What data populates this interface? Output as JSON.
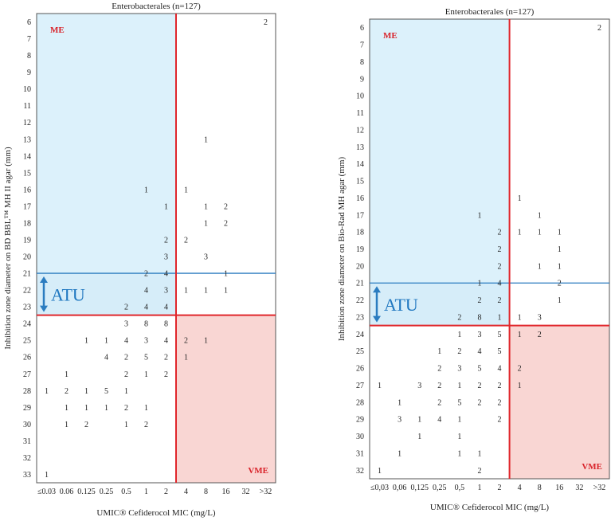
{
  "chart_data": [
    {
      "type": "table",
      "title": "Enterobacterales (n=127)",
      "xlabel": "UMIC® Cefiderocol MIC (mg/L)",
      "ylabel": "Inhibition zone diameter on BD BBL™ MH II agar (mm)",
      "x_categories": [
        "≤0.03",
        "0.06",
        "0.125",
        "0.25",
        "0.5",
        "1",
        "2",
        "4",
        "8",
        "16",
        "32",
        ">32"
      ],
      "y_categories": [
        "6",
        "7",
        "8",
        "9",
        "10",
        "11",
        "12",
        "13",
        "14",
        "15",
        "16",
        "17",
        "18",
        "19",
        "20",
        "21",
        "22",
        "23",
        "24",
        "25",
        "26",
        "27",
        "28",
        "29",
        "30",
        "31",
        "32",
        "33"
      ],
      "zones": {
        "me": "ME",
        "vme": "VME",
        "atu": "ATU"
      },
      "cells": [
        {
          "x": ">32",
          "y": "6",
          "value": 2
        },
        {
          "x": "8",
          "y": "13",
          "value": 1
        },
        {
          "x": "1",
          "y": "16",
          "value": 1
        },
        {
          "x": "4",
          "y": "16",
          "value": 1
        },
        {
          "x": "2",
          "y": "17",
          "value": 1
        },
        {
          "x": "8",
          "y": "17",
          "value": 1
        },
        {
          "x": "16",
          "y": "17",
          "value": 2
        },
        {
          "x": "8",
          "y": "18",
          "value": 1
        },
        {
          "x": "16",
          "y": "18",
          "value": 2
        },
        {
          "x": "2",
          "y": "19",
          "value": 2
        },
        {
          "x": "4",
          "y": "19",
          "value": 2
        },
        {
          "x": "2",
          "y": "20",
          "value": 3
        },
        {
          "x": "8",
          "y": "20",
          "value": 3
        },
        {
          "x": "1",
          "y": "21",
          "value": 2
        },
        {
          "x": "2",
          "y": "21",
          "value": 4
        },
        {
          "x": "16",
          "y": "21",
          "value": 1
        },
        {
          "x": "1",
          "y": "22",
          "value": 4
        },
        {
          "x": "2",
          "y": "22",
          "value": 3
        },
        {
          "x": "4",
          "y": "22",
          "value": 1
        },
        {
          "x": "8",
          "y": "22",
          "value": 1
        },
        {
          "x": "16",
          "y": "22",
          "value": 1
        },
        {
          "x": "0.5",
          "y": "23",
          "value": 2
        },
        {
          "x": "1",
          "y": "23",
          "value": 4
        },
        {
          "x": "2",
          "y": "23",
          "value": 4
        },
        {
          "x": "0.5",
          "y": "24",
          "value": 3
        },
        {
          "x": "1",
          "y": "24",
          "value": 8
        },
        {
          "x": "2",
          "y": "24",
          "value": 8
        },
        {
          "x": "0.125",
          "y": "25",
          "value": 1
        },
        {
          "x": "0.25",
          "y": "25",
          "value": 1
        },
        {
          "x": "0.5",
          "y": "25",
          "value": 4
        },
        {
          "x": "1",
          "y": "25",
          "value": 3
        },
        {
          "x": "2",
          "y": "25",
          "value": 4
        },
        {
          "x": "4",
          "y": "25",
          "value": 2
        },
        {
          "x": "8",
          "y": "25",
          "value": 1
        },
        {
          "x": "0.25",
          "y": "26",
          "value": 4
        },
        {
          "x": "0.5",
          "y": "26",
          "value": 2
        },
        {
          "x": "1",
          "y": "26",
          "value": 5
        },
        {
          "x": "2",
          "y": "26",
          "value": 2
        },
        {
          "x": "4",
          "y": "26",
          "value": 1
        },
        {
          "x": "0.06",
          "y": "27",
          "value": 1
        },
        {
          "x": "0.5",
          "y": "27",
          "value": 2
        },
        {
          "x": "1",
          "y": "27",
          "value": 1
        },
        {
          "x": "2",
          "y": "27",
          "value": 2
        },
        {
          "x": "≤0.03",
          "y": "28",
          "value": 1
        },
        {
          "x": "0.06",
          "y": "28",
          "value": 2
        },
        {
          "x": "0.125",
          "y": "28",
          "value": 1
        },
        {
          "x": "0.25",
          "y": "28",
          "value": 5
        },
        {
          "x": "0.5",
          "y": "28",
          "value": 1
        },
        {
          "x": "0.06",
          "y": "29",
          "value": 1
        },
        {
          "x": "0.125",
          "y": "29",
          "value": 1
        },
        {
          "x": "0.25",
          "y": "29",
          "value": 1
        },
        {
          "x": "0.5",
          "y": "29",
          "value": 2
        },
        {
          "x": "1",
          "y": "29",
          "value": 1
        },
        {
          "x": "0.06",
          "y": "30",
          "value": 1
        },
        {
          "x": "0.125",
          "y": "30",
          "value": 2
        },
        {
          "x": "0.5",
          "y": "30",
          "value": 1
        },
        {
          "x": "1",
          "y": "30",
          "value": 2
        },
        {
          "x": "≤0.03",
          "y": "33",
          "value": 1
        }
      ]
    },
    {
      "type": "table",
      "title": "Enterobacterales (n=127)",
      "xlabel": "UMIC® Cefiderocol MIC (mg/L)",
      "ylabel": "Inhibition zone diameter on Bio-Rad MH agar (mm)",
      "x_categories": [
        "≤0,03",
        "0,06",
        "0,125",
        "0,25",
        "0,5",
        "1",
        "2",
        "4",
        "8",
        "16",
        "32",
        ">32"
      ],
      "y_categories": [
        "6",
        "7",
        "8",
        "9",
        "10",
        "11",
        "12",
        "13",
        "14",
        "15",
        "16",
        "17",
        "18",
        "19",
        "20",
        "21",
        "22",
        "23",
        "24",
        "25",
        "26",
        "27",
        "28",
        "29",
        "30",
        "31",
        "32"
      ],
      "zones": {
        "me": "ME",
        "vme": "VME",
        "atu": "ATU"
      },
      "cells": [
        {
          "x": ">32",
          "y": "6",
          "value": 2
        },
        {
          "x": "4",
          "y": "16",
          "value": 1
        },
        {
          "x": "1",
          "y": "17",
          "value": 1
        },
        {
          "x": "8",
          "y": "17",
          "value": 1
        },
        {
          "x": "2",
          "y": "18",
          "value": 2
        },
        {
          "x": "4",
          "y": "18",
          "value": 1
        },
        {
          "x": "8",
          "y": "18",
          "value": 1
        },
        {
          "x": "16",
          "y": "18",
          "value": 1
        },
        {
          "x": "2",
          "y": "19",
          "value": 2
        },
        {
          "x": "16",
          "y": "19",
          "value": 1
        },
        {
          "x": "2",
          "y": "20",
          "value": 2
        },
        {
          "x": "8",
          "y": "20",
          "value": 1
        },
        {
          "x": "16",
          "y": "20",
          "value": 1
        },
        {
          "x": "1",
          "y": "21",
          "value": 1
        },
        {
          "x": "2",
          "y": "21",
          "value": 4
        },
        {
          "x": "16",
          "y": "21",
          "value": 2
        },
        {
          "x": "1",
          "y": "22",
          "value": 2
        },
        {
          "x": "2",
          "y": "22",
          "value": 2
        },
        {
          "x": "16",
          "y": "22",
          "value": 1
        },
        {
          "x": "0,5",
          "y": "23",
          "value": 2
        },
        {
          "x": "1",
          "y": "23",
          "value": 8
        },
        {
          "x": "2",
          "y": "23",
          "value": 1
        },
        {
          "x": "4",
          "y": "23",
          "value": 1
        },
        {
          "x": "8",
          "y": "23",
          "value": 3
        },
        {
          "x": "0,5",
          "y": "24",
          "value": 1
        },
        {
          "x": "1",
          "y": "24",
          "value": 3
        },
        {
          "x": "2",
          "y": "24",
          "value": 5
        },
        {
          "x": "4",
          "y": "24",
          "value": 1
        },
        {
          "x": "8",
          "y": "24",
          "value": 2
        },
        {
          "x": "0,25",
          "y": "25",
          "value": 1
        },
        {
          "x": "0,5",
          "y": "25",
          "value": 2
        },
        {
          "x": "1",
          "y": "25",
          "value": 4
        },
        {
          "x": "2",
          "y": "25",
          "value": 5
        },
        {
          "x": "0,25",
          "y": "26",
          "value": 2
        },
        {
          "x": "0,5",
          "y": "26",
          "value": 3
        },
        {
          "x": "1",
          "y": "26",
          "value": 5
        },
        {
          "x": "2",
          "y": "26",
          "value": 4
        },
        {
          "x": "4",
          "y": "26",
          "value": 2
        },
        {
          "x": "≤0,03",
          "y": "27",
          "value": 1
        },
        {
          "x": "0,125",
          "y": "27",
          "value": 3
        },
        {
          "x": "0,25",
          "y": "27",
          "value": 2
        },
        {
          "x": "0,5",
          "y": "27",
          "value": 1
        },
        {
          "x": "1",
          "y": "27",
          "value": 2
        },
        {
          "x": "2",
          "y": "27",
          "value": 2
        },
        {
          "x": "4",
          "y": "27",
          "value": 1
        },
        {
          "x": "0,06",
          "y": "28",
          "value": 1
        },
        {
          "x": "0,25",
          "y": "28",
          "value": 2
        },
        {
          "x": "0,5",
          "y": "28",
          "value": 5
        },
        {
          "x": "1",
          "y": "28",
          "value": 2
        },
        {
          "x": "2",
          "y": "28",
          "value": 2
        },
        {
          "x": "0,06",
          "y": "29",
          "value": 3
        },
        {
          "x": "0,125",
          "y": "29",
          "value": 1
        },
        {
          "x": "0,25",
          "y": "29",
          "value": 4
        },
        {
          "x": "0,5",
          "y": "29",
          "value": 1
        },
        {
          "x": "2",
          "y": "29",
          "value": 2
        },
        {
          "x": "0,125",
          "y": "30",
          "value": 1
        },
        {
          "x": "0,5",
          "y": "30",
          "value": 1
        },
        {
          "x": "0,06",
          "y": "31",
          "value": 1
        },
        {
          "x": "0,5",
          "y": "31",
          "value": 1
        },
        {
          "x": "1",
          "y": "31",
          "value": 1
        },
        {
          "x": "≤0,03",
          "y": "32",
          "value": 1
        },
        {
          "x": "1",
          "y": "32",
          "value": 2
        }
      ]
    }
  ],
  "colors": {
    "me_fill": "#dcf1fb",
    "atu_fill": "#d6edf9",
    "vme_fill": "#f9d6d3",
    "breakpoint_line": "#e0262b",
    "atu_line": "#2b7cc0",
    "atu_text": "#2176bd"
  }
}
